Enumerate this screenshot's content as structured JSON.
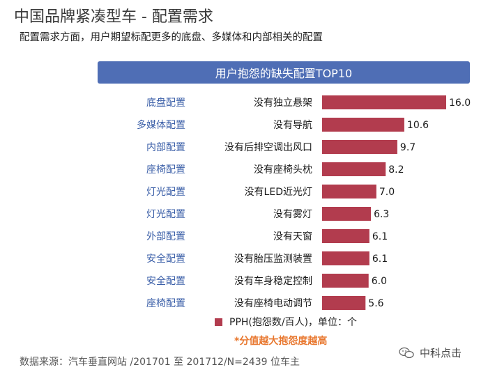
{
  "header": {
    "title": "中国品牌紧凑型车 - 配置需求",
    "subtitle": "配置需求方面，用户期望标配更多的底盘、多媒体和内部相关的配置"
  },
  "chart_data": {
    "type": "bar",
    "orientation": "horizontal",
    "title": "用户抱怨的缺失配置TOP10",
    "categories": [
      "底盘配置",
      "多媒体配置",
      "内部配置",
      "座椅配置",
      "灯光配置",
      "灯光配置",
      "外部配置",
      "安全配置",
      "安全配置",
      "座椅配置"
    ],
    "items": [
      "没有独立悬架",
      "没有导航",
      "没有后排空调出风口",
      "没有座椅头枕",
      "没有LED近光灯",
      "没有雾灯",
      "没有天窗",
      "没有胎压监测装置",
      "没有车身稳定控制",
      "没有座椅电动调节"
    ],
    "values": [
      16.0,
      10.6,
      9.7,
      8.2,
      7.0,
      6.3,
      6.1,
      6.1,
      6.0,
      5.6
    ],
    "value_labels": [
      "16.0",
      "10.6",
      "9.7",
      "8.2",
      "7.0",
      "6.3",
      "6.1",
      "6.1",
      "6.0",
      "5.6"
    ],
    "xlim": [
      0,
      16.0
    ],
    "series_name": "PPH(抱怨数/百人)，单位：个",
    "bar_color": "#b23c4e",
    "note": "*分值越大抱怨度越高"
  },
  "footer": {
    "source": "数据来源：汽车垂直网站 /201701 至 201712/N=2439 位车主",
    "watermark": "中科点击"
  }
}
